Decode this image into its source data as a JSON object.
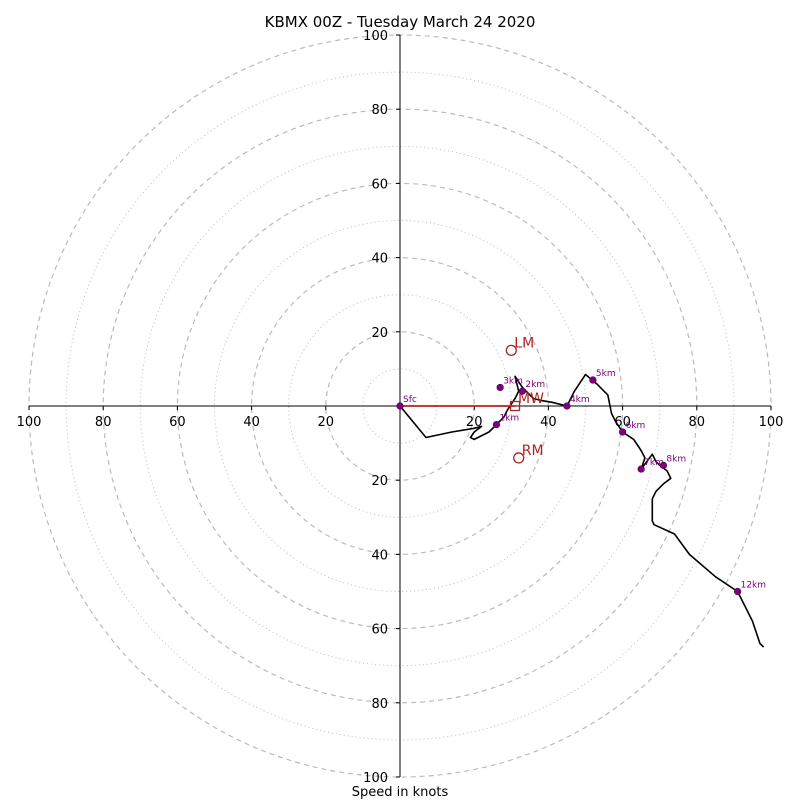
{
  "chart_data": {
    "type": "hodograph",
    "title": "KBMX 00Z - Tuesday March 24 2020",
    "xlabel": "Speed in knots",
    "xlim": [
      -100,
      100
    ],
    "ylim": [
      -100,
      100
    ],
    "ring_major": [
      20,
      40,
      60,
      80,
      100
    ],
    "ring_minor": [
      10,
      30,
      50,
      70,
      90
    ],
    "tick_values": [
      20,
      40,
      60,
      80,
      100
    ],
    "hodograph_trace": [
      [
        0,
        0
      ],
      [
        7,
        -8.5
      ],
      [
        14,
        -7
      ],
      [
        20,
        -6
      ],
      [
        22,
        -5.5
      ],
      [
        20,
        -7
      ],
      [
        19,
        -8.5
      ],
      [
        20,
        -9
      ],
      [
        24,
        -7
      ],
      [
        26,
        -5
      ],
      [
        28,
        -3
      ],
      [
        29,
        -1
      ],
      [
        31,
        2
      ],
      [
        32,
        4
      ],
      [
        31,
        8
      ],
      [
        33,
        5
      ],
      [
        35,
        3
      ],
      [
        36,
        2
      ],
      [
        38,
        1.5
      ],
      [
        41,
        1
      ],
      [
        45,
        0
      ],
      [
        47,
        4
      ],
      [
        50,
        8.5
      ],
      [
        53,
        6
      ],
      [
        56,
        3
      ],
      [
        57,
        -2
      ],
      [
        58,
        -4
      ],
      [
        59,
        -5.5
      ],
      [
        60,
        -7
      ],
      [
        63,
        -9
      ],
      [
        65,
        -12
      ],
      [
        66,
        -14
      ],
      [
        65,
        -17
      ],
      [
        68,
        -13
      ],
      [
        69,
        -15
      ],
      [
        70,
        -16
      ],
      [
        72,
        -17.5
      ],
      [
        73,
        -19.5
      ],
      [
        71,
        -21
      ],
      [
        69,
        -23
      ],
      [
        68,
        -25
      ],
      [
        68,
        -29
      ],
      [
        68,
        -31
      ],
      [
        68.5,
        -32
      ],
      [
        74,
        -34.5
      ],
      [
        78,
        -40
      ],
      [
        85,
        -46
      ],
      [
        91,
        -50
      ],
      [
        95,
        -58
      ],
      [
        97,
        -64
      ],
      [
        98,
        -65
      ]
    ],
    "height_markers": [
      {
        "label": "Sfc",
        "u": 0,
        "v": 0
      },
      {
        "label": "1km",
        "u": 26,
        "v": -5
      },
      {
        "label": "2km",
        "u": 33,
        "v": 4
      },
      {
        "label": "3km",
        "u": 27,
        "v": 5
      },
      {
        "label": "4km",
        "u": 45,
        "v": 0
      },
      {
        "label": "5km",
        "u": 52,
        "v": 7
      },
      {
        "label": "6km",
        "u": 60,
        "v": -7
      },
      {
        "label": "7km",
        "u": 65,
        "v": -17
      },
      {
        "label": "8km",
        "u": 71,
        "v": -16
      },
      {
        "label": "12km",
        "u": 91,
        "v": -50
      }
    ],
    "storm_motion": {
      "LM": {
        "label": "LM",
        "u": 30,
        "v": 15
      },
      "RM": {
        "label": "RM",
        "u": 32,
        "v": -14
      },
      "MW": {
        "label": "MW",
        "u": 31,
        "v": 0
      }
    },
    "colors": {
      "trace": "#000000",
      "marker": "#800080",
      "storm": "#b22222",
      "grid": "#bbbbbb"
    }
  }
}
